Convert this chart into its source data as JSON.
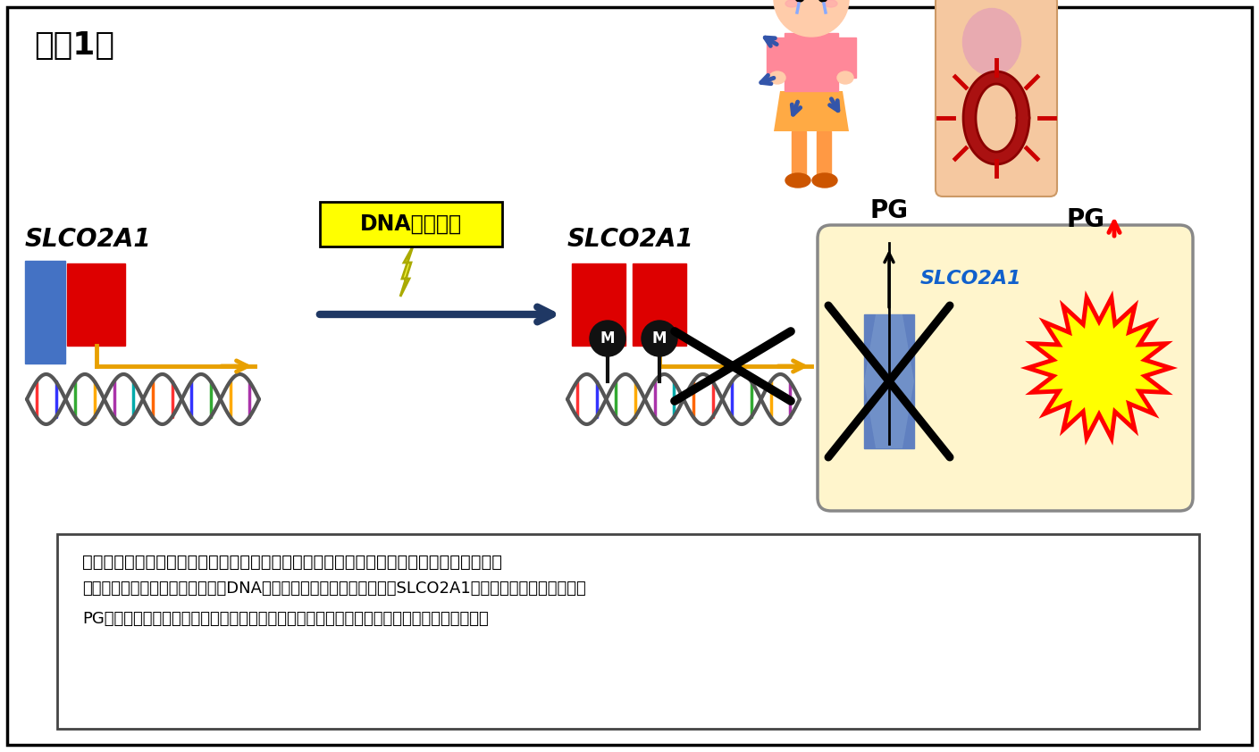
{
  "bg_color": "#ffffff",
  "border_color": "#000000",
  "fig_label": "【図1】",
  "gene_label": "SLCO2A1",
  "dna_methyl_label": "DNAメチル化",
  "pg_label": "PG",
  "slco2a1_cell_label": "SLCO2A1",
  "summary_bold": "・本研究で明らかになった、炎症性腸疾患発症におけるエピジェネティックなメカニズム",
  "summary_line2": "局所の腹管で後天的な修飾であるDNAメチル化がおきることにより、SLCO2A1遵伝子の発現が抑制され、",
  "summary_line3": "PGの取り込み活性が低下し、これが原因となって腹管粘膜に慢性的な炎症を引き起こした。",
  "blue_color": "#4472C4",
  "red_color": "#DD0000",
  "orange_color": "#E8A000",
  "navy_color": "#1F3864",
  "yellow_color": "#FFFF00",
  "cell_fill": "#FFF5CC",
  "cell_border": "#888888"
}
